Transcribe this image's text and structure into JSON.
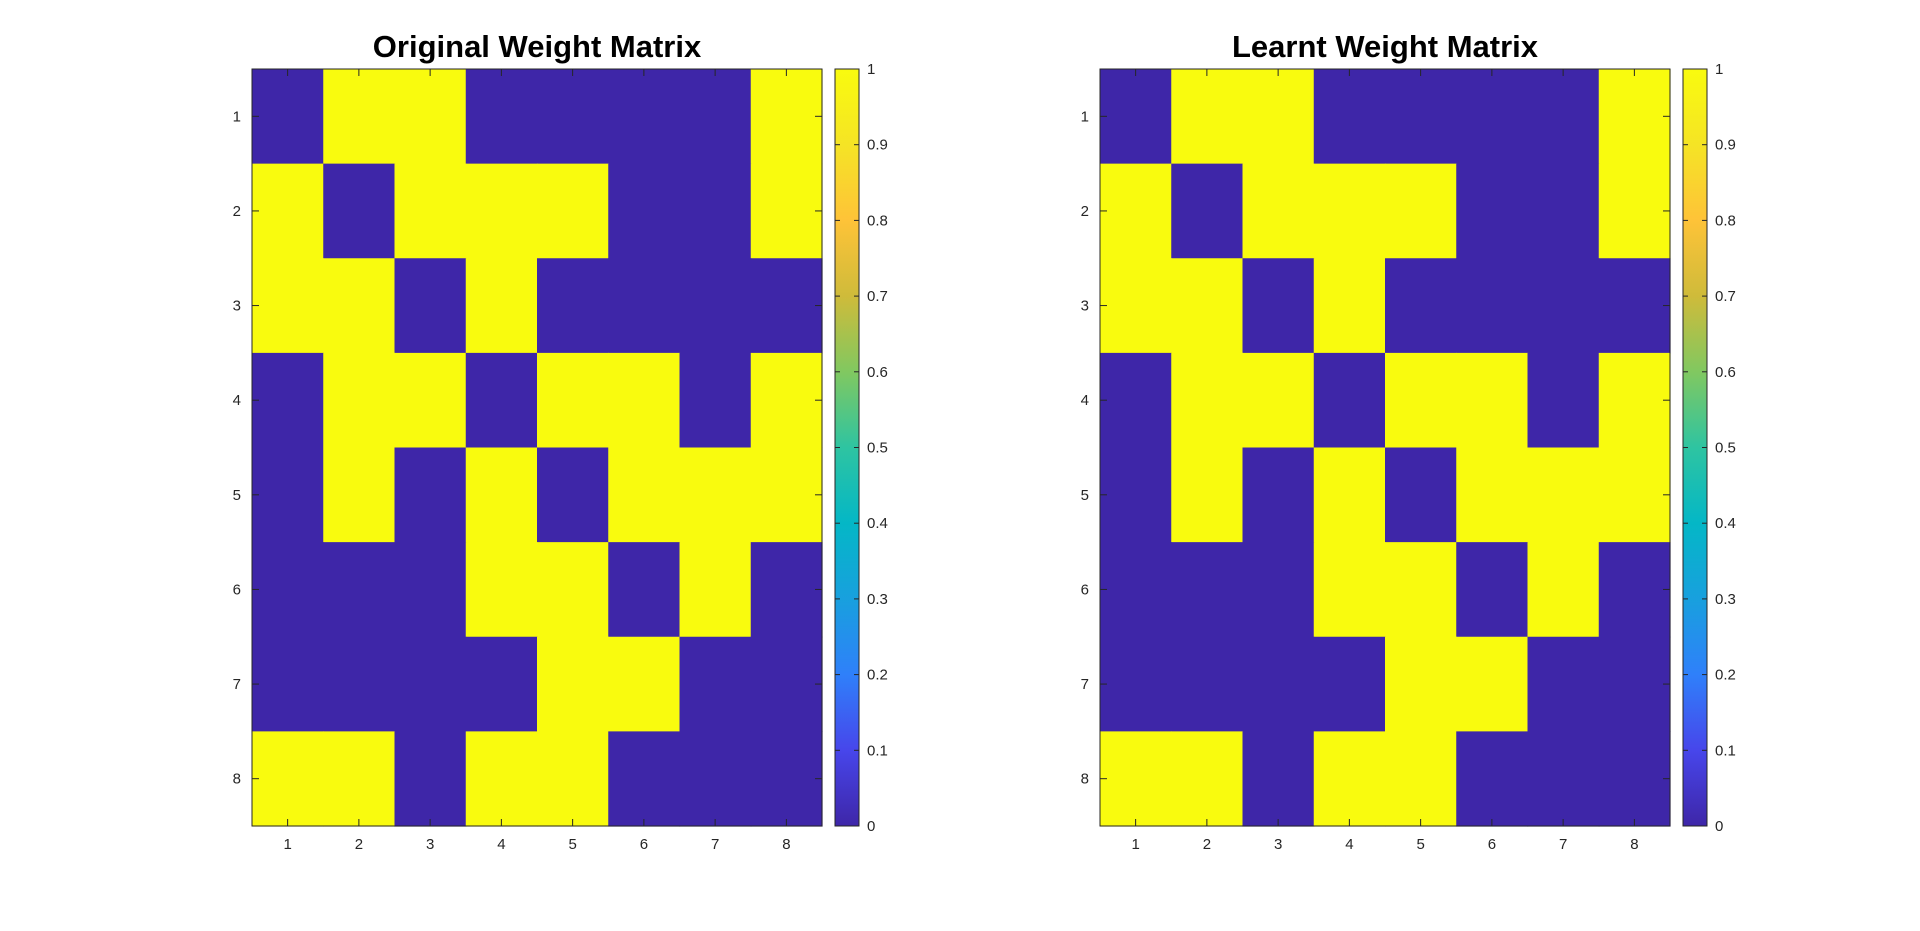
{
  "chart_data": [
    {
      "type": "heatmap",
      "title": "Original Weight Matrix",
      "xlabel": "",
      "ylabel": "",
      "x_ticks": [
        "1",
        "2",
        "3",
        "4",
        "5",
        "6",
        "7",
        "8"
      ],
      "y_ticks": [
        "1",
        "2",
        "3",
        "4",
        "5",
        "6",
        "7",
        "8"
      ],
      "matrix": [
        [
          0,
          1,
          1,
          0,
          0,
          0,
          0,
          1
        ],
        [
          1,
          0,
          1,
          1,
          1,
          0,
          0,
          1
        ],
        [
          1,
          1,
          0,
          1,
          0,
          0,
          0,
          0
        ],
        [
          0,
          1,
          1,
          0,
          1,
          1,
          0,
          1
        ],
        [
          0,
          1,
          0,
          1,
          0,
          1,
          1,
          1
        ],
        [
          0,
          0,
          0,
          1,
          1,
          0,
          1,
          0
        ],
        [
          0,
          0,
          0,
          0,
          1,
          1,
          0,
          0
        ],
        [
          1,
          1,
          0,
          1,
          1,
          0,
          0,
          0
        ]
      ],
      "colorbar": {
        "range": [
          0,
          1
        ],
        "ticks": [
          "0",
          "0.1",
          "0.2",
          "0.3",
          "0.4",
          "0.5",
          "0.6",
          "0.7",
          "0.8",
          "0.9",
          "1"
        ],
        "colormap": "parula"
      },
      "grid": false
    },
    {
      "type": "heatmap",
      "title": "Learnt Weight Matrix",
      "xlabel": "",
      "ylabel": "",
      "x_ticks": [
        "1",
        "2",
        "3",
        "4",
        "5",
        "6",
        "7",
        "8"
      ],
      "y_ticks": [
        "1",
        "2",
        "3",
        "4",
        "5",
        "6",
        "7",
        "8"
      ],
      "matrix": [
        [
          0,
          1,
          1,
          0,
          0,
          0,
          0,
          1
        ],
        [
          1,
          0,
          1,
          1,
          1,
          0,
          0,
          1
        ],
        [
          1,
          1,
          0,
          1,
          0,
          0,
          0,
          0
        ],
        [
          0,
          1,
          1,
          0,
          1,
          1,
          0,
          1
        ],
        [
          0,
          1,
          0,
          1,
          0,
          1,
          1,
          1
        ],
        [
          0,
          0,
          0,
          1,
          1,
          0,
          1,
          0
        ],
        [
          0,
          0,
          0,
          0,
          1,
          1,
          0,
          0
        ],
        [
          1,
          1,
          0,
          1,
          1,
          0,
          0,
          0
        ]
      ],
      "colorbar": {
        "range": [
          0,
          1
        ],
        "ticks": [
          "0",
          "0.1",
          "0.2",
          "0.3",
          "0.4",
          "0.5",
          "0.6",
          "0.7",
          "0.8",
          "0.9",
          "1"
        ],
        "colormap": "parula"
      },
      "grid": false
    }
  ],
  "colors": {
    "low": "#3E26A8",
    "high": "#F9FB0E",
    "parula_stops": [
      "#3E26A8",
      "#4746EB",
      "#2F80FA",
      "#18A0DE",
      "#04B7C6",
      "#2EC4A1",
      "#81C860",
      "#CFBB3A",
      "#FEC338",
      "#F5E425",
      "#F9FB0E"
    ]
  }
}
